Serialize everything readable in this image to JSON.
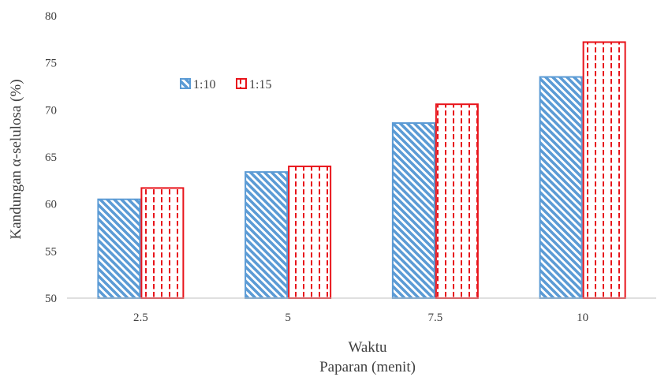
{
  "chart_data": {
    "type": "bar",
    "categories": [
      "2.5",
      "5",
      "7.5",
      "10"
    ],
    "series": [
      {
        "name": "1:10",
        "values": [
          60.5,
          63.4,
          68.6,
          73.5
        ],
        "color": "#5b9bd5",
        "pattern": "diagonal-hatch"
      },
      {
        "name": "1:15",
        "values": [
          61.7,
          64.0,
          70.6,
          77.2
        ],
        "color": "#e8141b",
        "pattern": "dashed-vertical"
      }
    ],
    "xlabel_line1": "Waktu",
    "xlabel_line2": "Paparan (menit)",
    "ylabel": "Kandungan α-selulosa (%)",
    "ylim": [
      50,
      80
    ],
    "yticks": [
      "50",
      "55",
      "60",
      "65",
      "70",
      "75",
      "80"
    ],
    "grid": false,
    "legend_position": "top-left"
  }
}
